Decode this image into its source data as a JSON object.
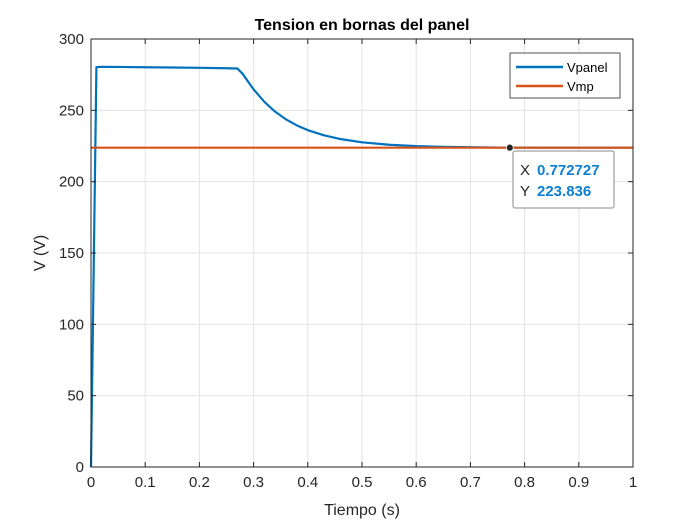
{
  "chart_data": {
    "type": "line",
    "title": "Tension en bornas del panel",
    "xlabel": "Tiempo (s)",
    "ylabel": "V (V)",
    "xlim": [
      0,
      1
    ],
    "ylim": [
      0,
      300
    ],
    "xticks": [
      "0",
      "0.1",
      "0.2",
      "0.3",
      "0.4",
      "0.5",
      "0.6",
      "0.7",
      "0.8",
      "0.9",
      "1"
    ],
    "yticks": [
      "0",
      "50",
      "100",
      "150",
      "200",
      "250",
      "300"
    ],
    "grid": true,
    "legend_position": "top-right",
    "series": [
      {
        "name": "Vpanel",
        "color": "#0072bd",
        "points": [
          [
            0,
            0
          ],
          [
            0.01,
            280.3
          ],
          [
            0.02,
            280.5
          ],
          [
            0.05,
            280.4
          ],
          [
            0.1,
            280.2
          ],
          [
            0.15,
            280.0
          ],
          [
            0.2,
            279.8
          ],
          [
            0.25,
            279.5
          ],
          [
            0.27,
            279.3
          ],
          [
            0.28,
            275.5
          ],
          [
            0.29,
            270.0
          ],
          [
            0.3,
            264.7
          ],
          [
            0.32,
            255.9
          ],
          [
            0.34,
            249.0
          ],
          [
            0.36,
            243.6
          ],
          [
            0.38,
            239.4
          ],
          [
            0.4,
            236.1
          ],
          [
            0.43,
            232.5
          ],
          [
            0.46,
            229.9
          ],
          [
            0.5,
            227.6
          ],
          [
            0.55,
            225.9
          ],
          [
            0.6,
            224.9
          ],
          [
            0.65,
            224.4
          ],
          [
            0.7,
            224.1
          ],
          [
            0.75,
            223.9
          ],
          [
            0.8,
            223.85
          ],
          [
            0.9,
            223.8
          ],
          [
            1.0,
            223.8
          ]
        ]
      },
      {
        "name": "Vmp",
        "color": "#d95319",
        "points": [
          [
            0,
            223.8
          ],
          [
            1,
            223.8
          ]
        ]
      }
    ],
    "datatip": {
      "x": 0.772727,
      "y": 223.836,
      "x_key": "X",
      "y_key": "Y",
      "x_text": "0.772727",
      "y_text": "223.836"
    }
  }
}
